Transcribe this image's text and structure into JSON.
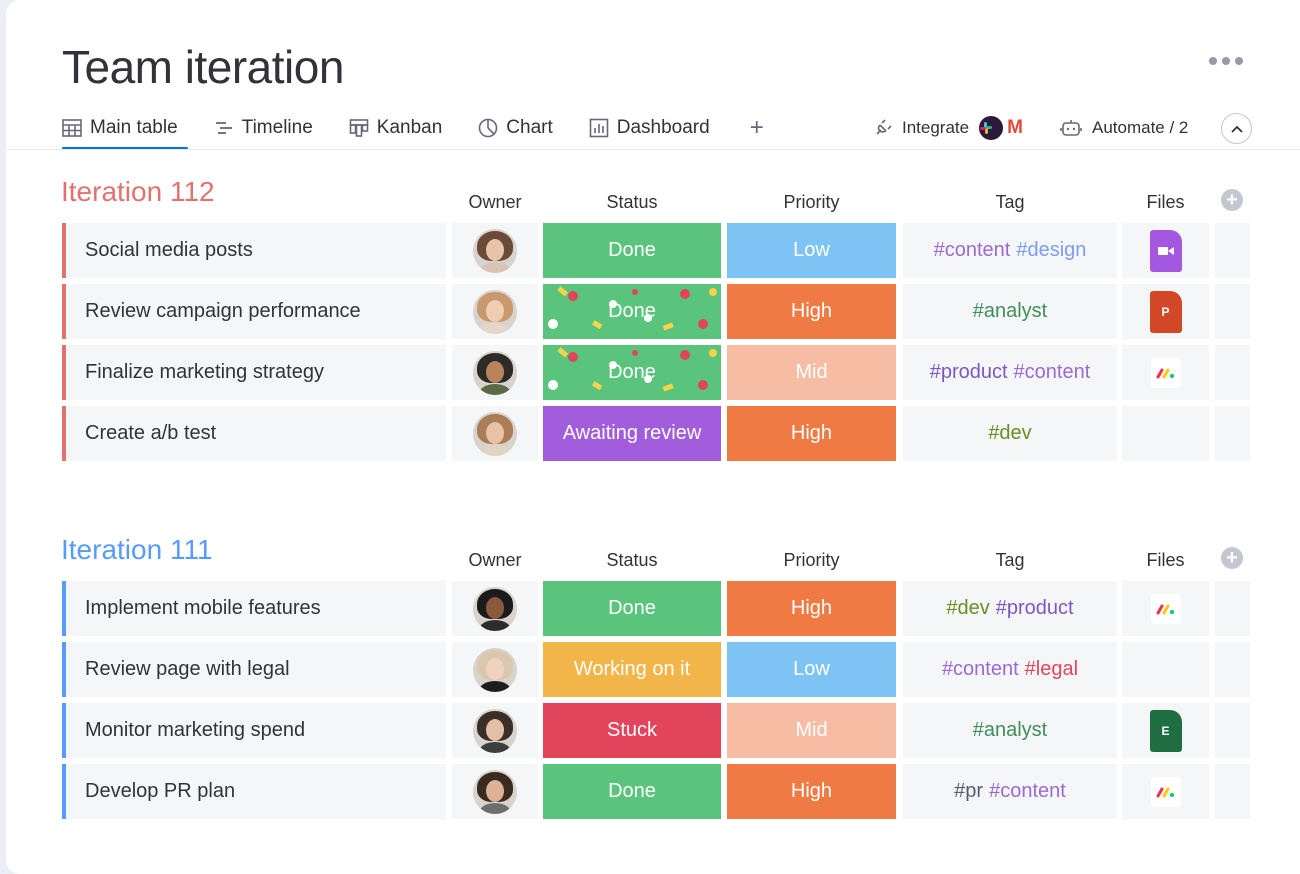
{
  "header": {
    "title": "Team iteration"
  },
  "tabs": [
    {
      "label": "Main table",
      "icon": "table-icon",
      "active": true
    },
    {
      "label": "Timeline",
      "icon": "timeline-icon"
    },
    {
      "label": "Kanban",
      "icon": "kanban-icon"
    },
    {
      "label": "Chart",
      "icon": "chart-icon"
    },
    {
      "label": "Dashboard",
      "icon": "dashboard-icon"
    }
  ],
  "toolbar": {
    "add_tab": "+",
    "integrate_label": "Integrate",
    "gmail_letter": "M",
    "automate_label": "Automate / 2"
  },
  "columns": {
    "owner": "Owner",
    "status": "Status",
    "priority": "Priority",
    "tag": "Tag",
    "files": "Files"
  },
  "colors": {
    "done": "#5ac47d",
    "working": "#f2b54a",
    "stuck": "#e2445c",
    "awaiting": "#a25ddc",
    "low": "#7dc4f4",
    "high": "#ef7a43",
    "mid": "#f6bda4",
    "group112": "#e2726e",
    "group111": "#579bfc"
  },
  "groups": [
    {
      "title": "Iteration 112",
      "color": "#e2726e",
      "rows": [
        {
          "item": "Social media posts",
          "status": "Done",
          "priority": "Low",
          "tags": [
            {
              "text": "#content",
              "cls": "tag-c"
            },
            {
              "text": "#design",
              "cls": "tag-d"
            }
          ],
          "file": "video"
        },
        {
          "item": "Review campaign performance",
          "status": "Done",
          "priority": "High",
          "tags": [
            {
              "text": "#analyst",
              "cls": "tag-g"
            }
          ],
          "file": "ppt",
          "file_letter": "P"
        },
        {
          "item": "Finalize marketing strategy",
          "status": "Done",
          "priority": "Mid",
          "tags": [
            {
              "text": "#product",
              "cls": "tag-b"
            },
            {
              "text": "#content",
              "cls": "tag-c"
            }
          ],
          "file": "monday"
        },
        {
          "item": "Create a/b test",
          "status": "Awaiting review",
          "priority": "High",
          "tags": [
            {
              "text": "#dev",
              "cls": "tag-a"
            }
          ],
          "file": ""
        }
      ]
    },
    {
      "title": "Iteration 111",
      "color": "#579bfc",
      "rows": [
        {
          "item": "Implement mobile features",
          "status": "Done",
          "priority": "High",
          "tags": [
            {
              "text": "#dev",
              "cls": "tag-a"
            },
            {
              "text": "#product",
              "cls": "tag-b"
            }
          ],
          "file": "monday"
        },
        {
          "item": "Review page with legal",
          "status": "Working on it",
          "priority": "Low",
          "tags": [
            {
              "text": "#content",
              "cls": "tag-c"
            },
            {
              "text": "#legal",
              "cls": "tag-e"
            }
          ],
          "file": ""
        },
        {
          "item": "Monitor marketing spend",
          "status": "Stuck",
          "priority": "Mid",
          "tags": [
            {
              "text": "#analyst",
              "cls": "tag-g"
            }
          ],
          "file": "excel",
          "file_letter": "E"
        },
        {
          "item": "Develop PR plan",
          "status": "Done",
          "priority": "High",
          "tags": [
            {
              "text": "#pr",
              "cls": "tag-f"
            },
            {
              "text": "#content",
              "cls": "tag-c"
            }
          ],
          "file": "monday"
        }
      ]
    }
  ]
}
